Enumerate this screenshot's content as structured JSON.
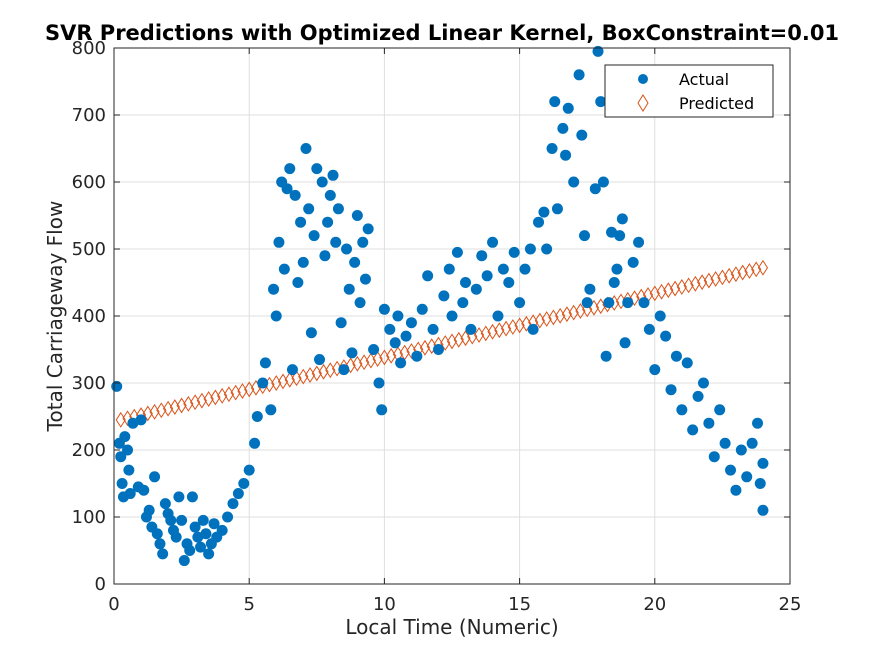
{
  "chart_data": {
    "type": "scatter",
    "title": "SVR Predictions with Optimized Linear Kernel, BoxConstraint=0.01",
    "xlabel": "Local Time (Numeric)",
    "ylabel": "Total Carriageway Flow",
    "xlim": [
      0,
      25
    ],
    "ylim": [
      0,
      800
    ],
    "xticks": [
      0,
      5,
      10,
      15,
      20,
      25
    ],
    "yticks": [
      0,
      100,
      200,
      300,
      400,
      500,
      600,
      700,
      800
    ],
    "grid": true,
    "legend_position": "top-right",
    "series": [
      {
        "name": "Actual",
        "marker": "filled-circle",
        "color": "#0072BD",
        "points": [
          [
            0.1,
            295
          ],
          [
            0.2,
            210
          ],
          [
            0.25,
            190
          ],
          [
            0.3,
            150
          ],
          [
            0.35,
            130
          ],
          [
            0.4,
            220
          ],
          [
            0.5,
            200
          ],
          [
            0.55,
            170
          ],
          [
            0.6,
            135
          ],
          [
            0.7,
            240
          ],
          [
            0.9,
            145
          ],
          [
            1.0,
            245
          ],
          [
            1.1,
            140
          ],
          [
            1.2,
            100
          ],
          [
            1.3,
            110
          ],
          [
            1.4,
            85
          ],
          [
            1.5,
            160
          ],
          [
            1.6,
            75
          ],
          [
            1.7,
            60
          ],
          [
            1.8,
            45
          ],
          [
            1.9,
            120
          ],
          [
            2.0,
            105
          ],
          [
            2.1,
            95
          ],
          [
            2.2,
            80
          ],
          [
            2.3,
            70
          ],
          [
            2.4,
            130
          ],
          [
            2.5,
            95
          ],
          [
            2.6,
            35
          ],
          [
            2.7,
            60
          ],
          [
            2.8,
            50
          ],
          [
            2.9,
            130
          ],
          [
            3.0,
            85
          ],
          [
            3.1,
            70
          ],
          [
            3.2,
            55
          ],
          [
            3.3,
            95
          ],
          [
            3.4,
            75
          ],
          [
            3.5,
            45
          ],
          [
            3.6,
            60
          ],
          [
            3.7,
            90
          ],
          [
            3.8,
            70
          ],
          [
            4.0,
            80
          ],
          [
            4.2,
            100
          ],
          [
            4.4,
            120
          ],
          [
            4.6,
            135
          ],
          [
            4.8,
            150
          ],
          [
            5.0,
            170
          ],
          [
            5.2,
            210
          ],
          [
            5.3,
            250
          ],
          [
            5.5,
            300
          ],
          [
            5.6,
            330
          ],
          [
            5.8,
            260
          ],
          [
            5.9,
            440
          ],
          [
            6.0,
            400
          ],
          [
            6.1,
            510
          ],
          [
            6.2,
            600
          ],
          [
            6.3,
            470
          ],
          [
            6.4,
            590
          ],
          [
            6.5,
            620
          ],
          [
            6.6,
            320
          ],
          [
            6.7,
            580
          ],
          [
            6.8,
            450
          ],
          [
            6.9,
            540
          ],
          [
            7.0,
            480
          ],
          [
            7.1,
            650
          ],
          [
            7.2,
            560
          ],
          [
            7.3,
            375
          ],
          [
            7.4,
            520
          ],
          [
            7.5,
            620
          ],
          [
            7.6,
            335
          ],
          [
            7.7,
            600
          ],
          [
            7.8,
            490
          ],
          [
            7.9,
            540
          ],
          [
            8.0,
            580
          ],
          [
            8.1,
            610
          ],
          [
            8.2,
            510
          ],
          [
            8.3,
            560
          ],
          [
            8.4,
            390
          ],
          [
            8.5,
            320
          ],
          [
            8.6,
            500
          ],
          [
            8.7,
            440
          ],
          [
            8.8,
            345
          ],
          [
            8.9,
            480
          ],
          [
            9.0,
            550
          ],
          [
            9.1,
            420
          ],
          [
            9.2,
            510
          ],
          [
            9.3,
            455
          ],
          [
            9.4,
            530
          ],
          [
            9.6,
            350
          ],
          [
            9.8,
            300
          ],
          [
            9.9,
            260
          ],
          [
            10.0,
            410
          ],
          [
            10.2,
            380
          ],
          [
            10.4,
            360
          ],
          [
            10.5,
            400
          ],
          [
            10.6,
            330
          ],
          [
            10.8,
            370
          ],
          [
            11.0,
            390
          ],
          [
            11.2,
            340
          ],
          [
            11.4,
            410
          ],
          [
            11.6,
            460
          ],
          [
            11.8,
            380
          ],
          [
            12.0,
            350
          ],
          [
            12.2,
            430
          ],
          [
            12.4,
            470
          ],
          [
            12.5,
            400
          ],
          [
            12.7,
            495
          ],
          [
            12.9,
            420
          ],
          [
            13.0,
            450
          ],
          [
            13.2,
            380
          ],
          [
            13.4,
            440
          ],
          [
            13.6,
            490
          ],
          [
            13.8,
            460
          ],
          [
            14.0,
            510
          ],
          [
            14.2,
            400
          ],
          [
            14.4,
            470
          ],
          [
            14.6,
            450
          ],
          [
            14.8,
            495
          ],
          [
            15.0,
            420
          ],
          [
            15.2,
            470
          ],
          [
            15.4,
            500
          ],
          [
            15.5,
            380
          ],
          [
            15.7,
            540
          ],
          [
            15.9,
            555
          ],
          [
            16.0,
            500
          ],
          [
            16.2,
            650
          ],
          [
            16.3,
            720
          ],
          [
            16.4,
            560
          ],
          [
            16.6,
            680
          ],
          [
            16.7,
            640
          ],
          [
            16.8,
            710
          ],
          [
            17.0,
            600
          ],
          [
            17.2,
            760
          ],
          [
            17.3,
            670
          ],
          [
            17.4,
            520
          ],
          [
            17.5,
            420
          ],
          [
            17.6,
            440
          ],
          [
            17.8,
            590
          ],
          [
            17.9,
            795
          ],
          [
            18.0,
            720
          ],
          [
            18.1,
            600
          ],
          [
            18.2,
            340
          ],
          [
            18.3,
            420
          ],
          [
            18.4,
            525
          ],
          [
            18.5,
            450
          ],
          [
            18.6,
            470
          ],
          [
            18.7,
            520
          ],
          [
            18.8,
            545
          ],
          [
            18.9,
            360
          ],
          [
            19.0,
            420
          ],
          [
            19.2,
            480
          ],
          [
            19.4,
            510
          ],
          [
            19.6,
            420
          ],
          [
            19.8,
            380
          ],
          [
            20.0,
            320
          ],
          [
            20.2,
            400
          ],
          [
            20.4,
            370
          ],
          [
            20.6,
            290
          ],
          [
            20.8,
            340
          ],
          [
            21.0,
            260
          ],
          [
            21.2,
            330
          ],
          [
            21.4,
            230
          ],
          [
            21.6,
            280
          ],
          [
            21.8,
            300
          ],
          [
            22.0,
            240
          ],
          [
            22.2,
            190
          ],
          [
            22.4,
            260
          ],
          [
            22.6,
            210
          ],
          [
            22.8,
            170
          ],
          [
            23.0,
            140
          ],
          [
            23.2,
            200
          ],
          [
            23.4,
            160
          ],
          [
            23.6,
            210
          ],
          [
            23.8,
            240
          ],
          [
            23.9,
            150
          ],
          [
            24.0,
            110
          ],
          [
            24.0,
            180
          ]
        ]
      },
      {
        "name": "Predicted",
        "marker": "open-diamond",
        "color": "#D95319",
        "x_start": 0.25,
        "x_end": 24.0,
        "count": 96,
        "y_start": 245,
        "y_end": 472
      }
    ]
  }
}
